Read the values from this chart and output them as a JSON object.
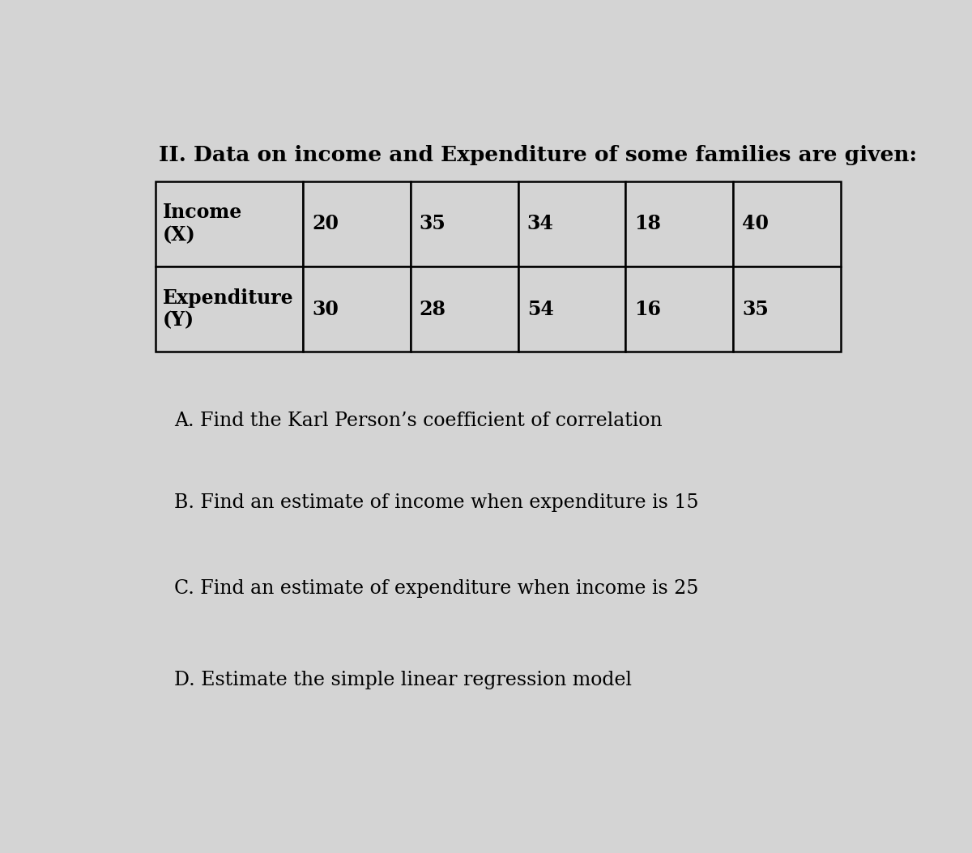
{
  "title": "II. Data on income and Expenditure of some families are given:",
  "income_values": [
    "20",
    "35",
    "34",
    "18",
    "40"
  ],
  "expenditure_values": [
    "30",
    "28",
    "54",
    "16",
    "35"
  ],
  "question_a": "A. Find the Karl Person’s coefficient of correlation",
  "question_b": "B. Find an estimate of income when expenditure is 15",
  "question_c": "C. Find an estimate of expenditure when income is 25",
  "question_d": "D. Estimate the simple linear regression model",
  "bg_color": "#d4d4d4",
  "title_fontsize": 19,
  "question_fontsize": 17,
  "table_fontsize": 17,
  "cell_text_color": "#000000",
  "title_color": "#000000"
}
